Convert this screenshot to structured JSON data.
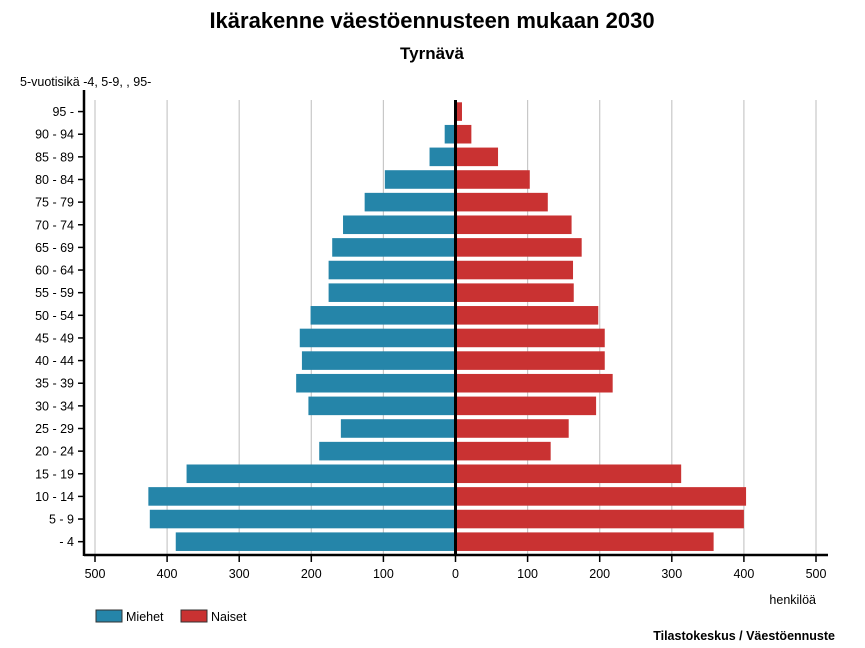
{
  "chart_data": {
    "type": "bar",
    "orientation": "horizontal-population-pyramid",
    "title": "Ikärakenne väestöennusteen mukaan 2030",
    "subtitle": "Tyrnävä",
    "ylabel": "5-vuotisikä -4, 5-9, , 95-",
    "xlabel": "henkilöä",
    "source": "Tilastokeskus / Väestöennuste",
    "xlim": [
      -500,
      500
    ],
    "xticks": [
      -500,
      -400,
      -300,
      -200,
      -100,
      0,
      100,
      200,
      300,
      400,
      500
    ],
    "xtick_labels": [
      "500",
      "400",
      "300",
      "200",
      "100",
      "0",
      "100",
      "200",
      "300",
      "400",
      "500"
    ],
    "grid": true,
    "legend_position": "bottom-left",
    "categories": [
      "- 4",
      "5 - 9",
      "10 - 14",
      "15 - 19",
      "20 - 24",
      "25 - 29",
      "30 - 34",
      "35 - 39",
      "40 - 44",
      "45 - 49",
      "50 - 54",
      "55 - 59",
      "60 - 64",
      "65 - 69",
      "70 - 74",
      "75 - 79",
      "80 - 84",
      "85 - 89",
      "90 - 94",
      "95 -"
    ],
    "series": [
      {
        "name": "Miehet",
        "color": "#2585a9",
        "side": "left",
        "values": [
          388,
          424,
          426,
          373,
          189,
          159,
          204,
          221,
          213,
          216,
          201,
          176,
          176,
          171,
          156,
          126,
          98,
          36,
          15,
          0
        ]
      },
      {
        "name": "Naiset",
        "color": "#c93232",
        "side": "right",
        "values": [
          358,
          400,
          403,
          313,
          132,
          157,
          195,
          218,
          207,
          207,
          198,
          164,
          163,
          175,
          161,
          128,
          103,
          59,
          22,
          9
        ]
      }
    ]
  }
}
